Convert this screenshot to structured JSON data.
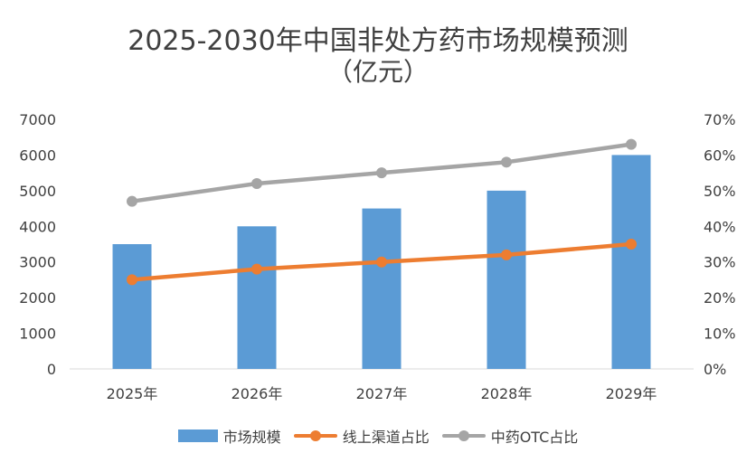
{
  "chart_data": {
    "type": "bar",
    "title": "2025-2030年中国非处方药市场规模预测",
    "subtitle": "（亿元）",
    "categories": [
      "2025年",
      "2026年",
      "2027年",
      "2028年",
      "2029年"
    ],
    "series": [
      {
        "name": "市场规模",
        "type": "bar",
        "axis": "left",
        "values": [
          3500,
          4000,
          4500,
          5000,
          6000
        ],
        "color": "#5b9bd5"
      },
      {
        "name": "线上渠道占比",
        "type": "line",
        "axis": "right",
        "values": [
          0.25,
          0.28,
          0.3,
          0.32,
          0.35
        ],
        "color": "#ed7d31"
      },
      {
        "name": "中药OTC占比",
        "type": "line",
        "axis": "right",
        "values": [
          0.47,
          0.52,
          0.55,
          0.58,
          0.63
        ],
        "color": "#a5a5a5"
      }
    ],
    "ylim": [
      0,
      7000
    ],
    "yticks": [
      "0",
      "1000",
      "2000",
      "3000",
      "4000",
      "5000",
      "6000",
      "7000"
    ],
    "y2lim": [
      0,
      0.7
    ],
    "y2ticks": [
      "0%",
      "10%",
      "20%",
      "30%",
      "40%",
      "50%",
      "60%",
      "70%"
    ],
    "grid": false,
    "legend_position": "bottom"
  }
}
